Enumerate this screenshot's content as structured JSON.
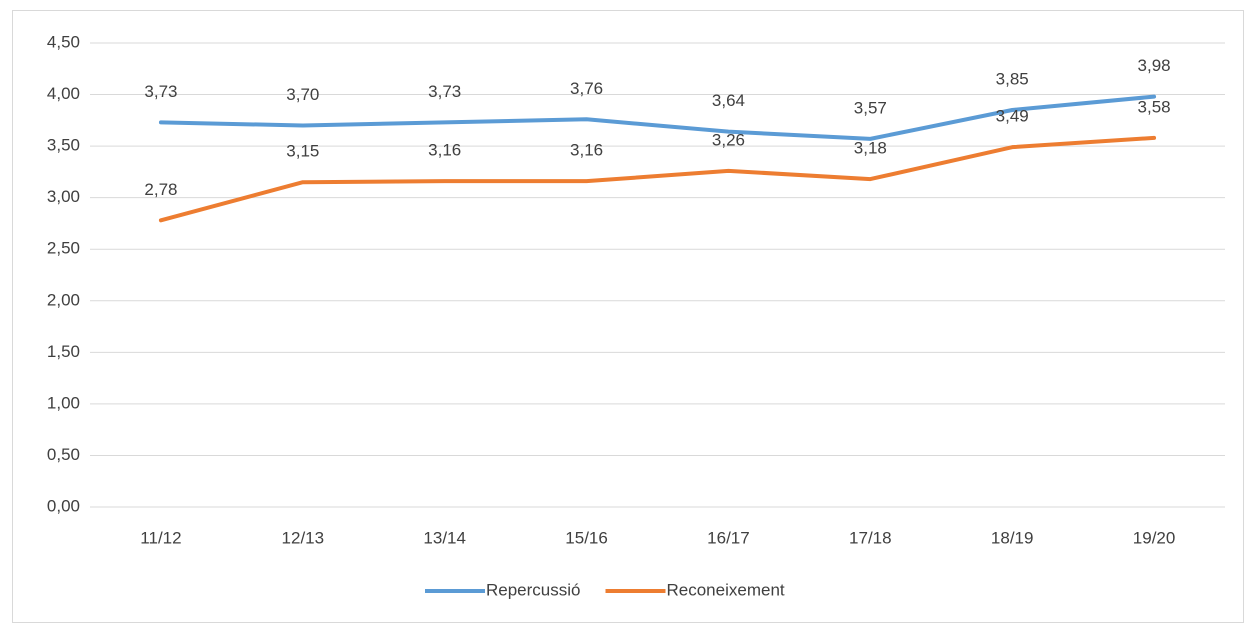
{
  "chart_data": {
    "type": "line",
    "categories": [
      "11/12",
      "12/13",
      "13/14",
      "15/16",
      "16/17",
      "17/18",
      "18/19",
      "19/20"
    ],
    "series": [
      {
        "name": "Repercussió",
        "color": "#5b9bd5",
        "values": [
          3.73,
          3.7,
          3.73,
          3.76,
          3.64,
          3.57,
          3.85,
          3.98
        ],
        "value_labels": [
          "3,73",
          "3,70",
          "3,73",
          "3,76",
          "3,64",
          "3,57",
          "3,85",
          "3,98"
        ]
      },
      {
        "name": "Reconeixement",
        "color": "#ed7d31",
        "values": [
          2.78,
          3.15,
          3.16,
          3.16,
          3.26,
          3.18,
          3.49,
          3.58
        ],
        "value_labels": [
          "2,78",
          "3,15",
          "3,16",
          "3,16",
          "3,26",
          "3,18",
          "3,49",
          "3,58"
        ]
      }
    ],
    "ylim": [
      0,
      4.5
    ],
    "yticks": [
      {
        "value": 0,
        "label": "0,00"
      },
      {
        "value": 0.5,
        "label": "0,50"
      },
      {
        "value": 1,
        "label": "1,00"
      },
      {
        "value": 1.5,
        "label": "1,50"
      },
      {
        "value": 2,
        "label": "2,00"
      },
      {
        "value": 2.5,
        "label": "2,50"
      },
      {
        "value": 3,
        "label": "3,00"
      },
      {
        "value": 3.5,
        "label": "3,50"
      },
      {
        "value": 4,
        "label": "4,00"
      },
      {
        "value": 4.5,
        "label": "4,50"
      }
    ],
    "grid": true,
    "legend": "bottom"
  }
}
